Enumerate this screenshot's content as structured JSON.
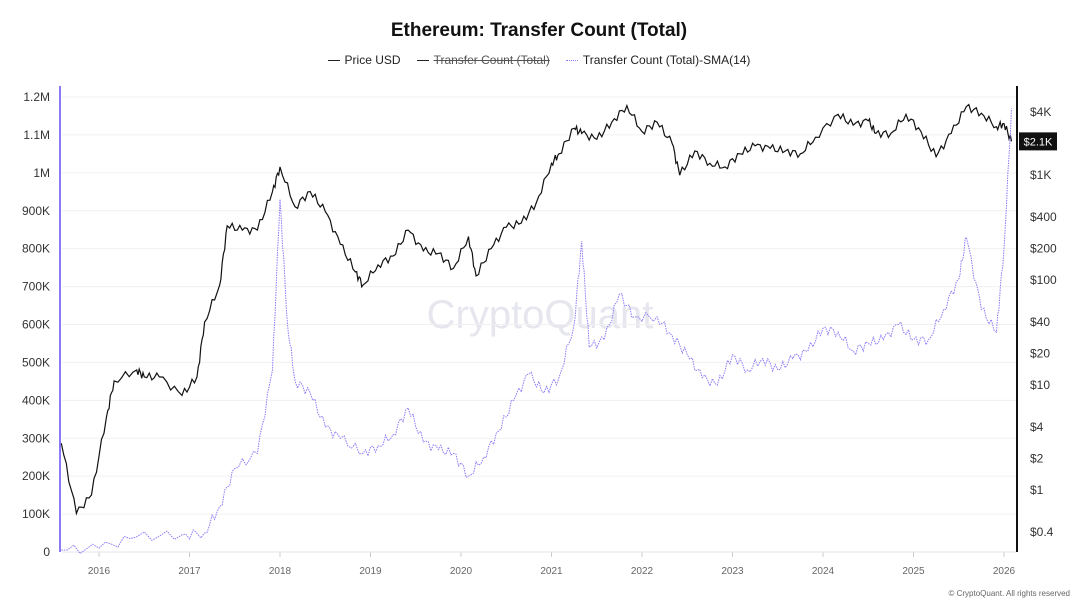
{
  "chart_data": {
    "type": "line",
    "title": "Ethereum: Transfer Count (Total)",
    "legend": [
      {
        "name": "Price USD",
        "color": "#111111",
        "hidden": false
      },
      {
        "name": "Transfer Count (Total)",
        "color": "#111111",
        "hidden": true
      },
      {
        "name": "Transfer Count (Total)-SMA(14)",
        "color": "#8b7cf6",
        "hidden": false
      }
    ],
    "legend_position": "top-center",
    "grid": true,
    "x_ticks": [
      "2016",
      "2017",
      "2018",
      "2019",
      "2020",
      "2021",
      "2022",
      "2023",
      "2024",
      "2025",
      "2026"
    ],
    "y_left": {
      "scale": "linear",
      "range": [
        0,
        1200000
      ],
      "ticks": [
        "0",
        "100K",
        "200K",
        "300K",
        "400K",
        "500K",
        "600K",
        "700K",
        "800K",
        "900K",
        "1M",
        "1.1M",
        "1.2M"
      ]
    },
    "y_right": {
      "scale": "log",
      "ticks": [
        "$0.4",
        "$1",
        "$2",
        "$4",
        "$10",
        "$20",
        "$40",
        "$100",
        "$200",
        "$400",
        "$1K",
        "$4K"
      ],
      "tick_values": [
        0.4,
        1,
        2,
        4,
        10,
        20,
        40,
        100,
        200,
        400,
        1000,
        4000
      ],
      "current_label": "$2.1K"
    },
    "series": [
      {
        "name": "Price USD",
        "axis": "right",
        "color": "#111111",
        "points": [
          [
            "2015-08",
            2.8
          ],
          [
            "2015-10",
            0.6
          ],
          [
            "2015-12",
            0.9
          ],
          [
            "2016-02",
            5
          ],
          [
            "2016-03",
            11
          ],
          [
            "2016-06",
            14
          ],
          [
            "2016-07",
            12
          ],
          [
            "2016-09",
            12
          ],
          [
            "2016-12",
            8
          ],
          [
            "2017-02",
            12
          ],
          [
            "2017-03",
            40
          ],
          [
            "2017-05",
            90
          ],
          [
            "2017-06",
            330
          ],
          [
            "2017-08",
            300
          ],
          [
            "2017-10",
            300
          ],
          [
            "2017-12",
            700
          ],
          [
            "2018-01",
            1200
          ],
          [
            "2018-03",
            500
          ],
          [
            "2018-05",
            700
          ],
          [
            "2018-07",
            450
          ],
          [
            "2018-09",
            220
          ],
          [
            "2018-11",
            120
          ],
          [
            "2018-12",
            90
          ],
          [
            "2019-02",
            140
          ],
          [
            "2019-04",
            170
          ],
          [
            "2019-06",
            300
          ],
          [
            "2019-08",
            190
          ],
          [
            "2019-10",
            180
          ],
          [
            "2019-12",
            130
          ],
          [
            "2020-02",
            260
          ],
          [
            "2020-03",
            110
          ],
          [
            "2020-05",
            200
          ],
          [
            "2020-07",
            320
          ],
          [
            "2020-09",
            350
          ],
          [
            "2020-11",
            550
          ],
          [
            "2021-01",
            1300
          ],
          [
            "2021-02",
            1600
          ],
          [
            "2021-04",
            2800
          ],
          [
            "2021-05",
            2500
          ],
          [
            "2021-07",
            2200
          ],
          [
            "2021-09",
            3200
          ],
          [
            "2021-11",
            4600
          ],
          [
            "2022-01",
            2600
          ],
          [
            "2022-03",
            3200
          ],
          [
            "2022-05",
            2000
          ],
          [
            "2022-06",
            1000
          ],
          [
            "2022-08",
            1700
          ],
          [
            "2022-10",
            1300
          ],
          [
            "2022-12",
            1200
          ],
          [
            "2023-02",
            1600
          ],
          [
            "2023-04",
            1900
          ],
          [
            "2023-06",
            1800
          ],
          [
            "2023-08",
            1700
          ],
          [
            "2023-10",
            1600
          ],
          [
            "2023-12",
            2300
          ],
          [
            "2024-03",
            3800
          ],
          [
            "2024-05",
            3000
          ],
          [
            "2024-07",
            3300
          ],
          [
            "2024-08",
            2500
          ],
          [
            "2024-10",
            2500
          ],
          [
            "2024-12",
            3800
          ],
          [
            "2025-02",
            2600
          ],
          [
            "2025-04",
            1500
          ],
          [
            "2025-06",
            2500
          ],
          [
            "2025-08",
            4500
          ],
          [
            "2025-10",
            3900
          ],
          [
            "2025-12",
            2900
          ],
          [
            "2026-01",
            3100
          ],
          [
            "2026-02",
            2100
          ]
        ]
      },
      {
        "name": "Transfer Count (Total)-SMA(14)",
        "axis": "left",
        "color": "#8b7cf6",
        "points": [
          [
            "2015-08",
            5000
          ],
          [
            "2016-01",
            10000
          ],
          [
            "2016-06",
            40000
          ],
          [
            "2016-12",
            45000
          ],
          [
            "2017-03",
            50000
          ],
          [
            "2017-05",
            120000
          ],
          [
            "2017-07",
            220000
          ],
          [
            "2017-10",
            260000
          ],
          [
            "2017-12",
            480000
          ],
          [
            "2018-01",
            930000
          ],
          [
            "2018-02",
            600000
          ],
          [
            "2018-03",
            450000
          ],
          [
            "2018-05",
            420000
          ],
          [
            "2018-07",
            330000
          ],
          [
            "2018-09",
            300000
          ],
          [
            "2018-12",
            260000
          ],
          [
            "2019-02",
            280000
          ],
          [
            "2019-04",
            310000
          ],
          [
            "2019-06",
            380000
          ],
          [
            "2019-08",
            290000
          ],
          [
            "2019-10",
            270000
          ],
          [
            "2019-12",
            260000
          ],
          [
            "2020-02",
            200000
          ],
          [
            "2020-04",
            250000
          ],
          [
            "2020-06",
            320000
          ],
          [
            "2020-08",
            400000
          ],
          [
            "2020-10",
            470000
          ],
          [
            "2020-12",
            420000
          ],
          [
            "2021-02",
            460000
          ],
          [
            "2021-04",
            600000
          ],
          [
            "2021-05",
            820000
          ],
          [
            "2021-06",
            540000
          ],
          [
            "2021-08",
            560000
          ],
          [
            "2021-10",
            680000
          ],
          [
            "2021-12",
            620000
          ],
          [
            "2022-03",
            620000
          ],
          [
            "2022-05",
            570000
          ],
          [
            "2022-07",
            520000
          ],
          [
            "2022-09",
            460000
          ],
          [
            "2022-11",
            440000
          ],
          [
            "2023-01",
            520000
          ],
          [
            "2023-03",
            480000
          ],
          [
            "2023-05",
            510000
          ],
          [
            "2023-07",
            480000
          ],
          [
            "2023-09",
            510000
          ],
          [
            "2023-11",
            530000
          ],
          [
            "2024-01",
            590000
          ],
          [
            "2024-03",
            580000
          ],
          [
            "2024-05",
            530000
          ],
          [
            "2024-07",
            550000
          ],
          [
            "2024-09",
            560000
          ],
          [
            "2024-11",
            600000
          ],
          [
            "2025-01",
            560000
          ],
          [
            "2025-03",
            560000
          ],
          [
            "2025-05",
            640000
          ],
          [
            "2025-07",
            720000
          ],
          [
            "2025-08",
            830000
          ],
          [
            "2025-10",
            640000
          ],
          [
            "2025-12",
            580000
          ],
          [
            "2026-01",
            800000
          ],
          [
            "2026-02",
            1170000
          ]
        ]
      }
    ]
  },
  "watermark": "CryptoQuant",
  "footer": "© CryptoQuant. All rights reserved"
}
